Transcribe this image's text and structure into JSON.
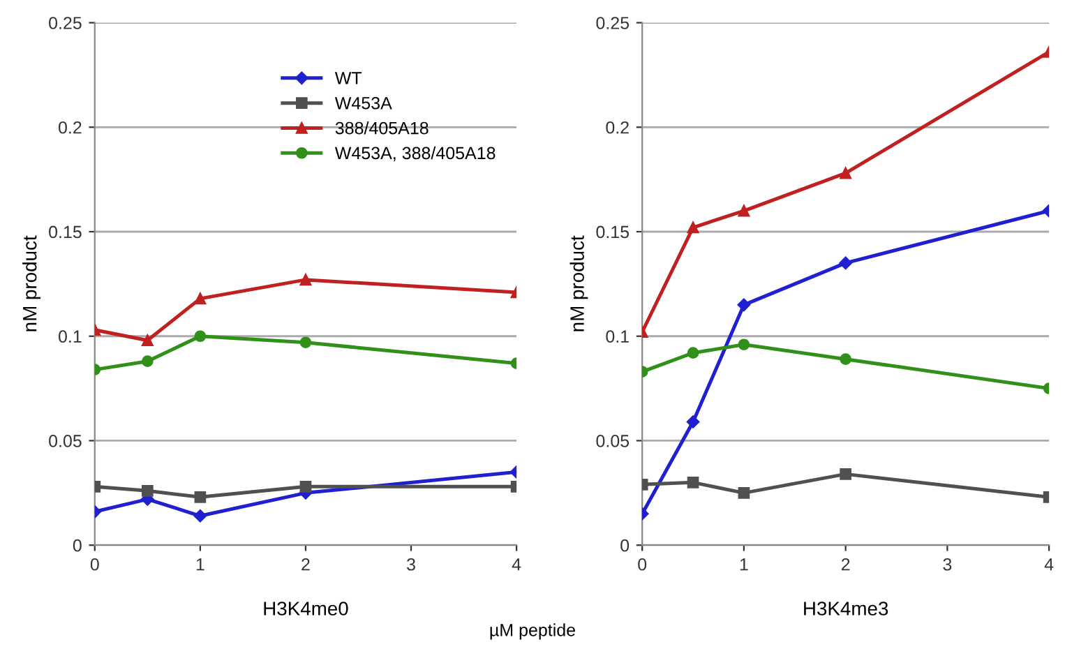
{
  "chart_data": [
    {
      "type": "line",
      "xlabel": "H3K4me0",
      "ylabel": "nM product",
      "x": [
        0,
        0.5,
        1,
        2,
        4
      ],
      "xlim": [
        0,
        4
      ],
      "xticks": [
        0,
        1,
        2,
        3,
        4
      ],
      "ylim": [
        0,
        0.25
      ],
      "yticks": [
        0,
        0.05,
        0.1,
        0.15,
        0.2,
        0.25
      ],
      "grid": "y",
      "legend": "top right",
      "annotations": [
        "µM peptide"
      ],
      "series": [
        {
          "name": "WT",
          "color": "#2020d0",
          "marker": "diamond",
          "values": [
            0.016,
            0.022,
            0.014,
            0.025,
            0.035
          ]
        },
        {
          "name": "W453A",
          "color": "#505050",
          "marker": "square",
          "values": [
            0.028,
            0.026,
            0.023,
            0.028,
            0.028
          ]
        },
        {
          "name": "388/405A18",
          "color": "#c02020",
          "marker": "triangle",
          "values": [
            0.103,
            0.098,
            0.118,
            0.127,
            0.121
          ]
        },
        {
          "name": "W453A, 388/405A18",
          "color": "#30901a",
          "marker": "circle",
          "values": [
            0.084,
            0.088,
            0.1,
            0.097,
            0.087
          ]
        }
      ]
    },
    {
      "type": "line",
      "xlabel": "H3K4me3",
      "ylabel": "nM product",
      "x": [
        0,
        0.5,
        1,
        2,
        4
      ],
      "xlim": [
        0,
        4
      ],
      "xticks": [
        0,
        1,
        2,
        3,
        4
      ],
      "ylim": [
        0,
        0.25
      ],
      "yticks": [
        0,
        0.05,
        0.1,
        0.15,
        0.2,
        0.25
      ],
      "grid": "y",
      "series": [
        {
          "color": "#2020d0",
          "marker": "diamond",
          "values": [
            0.015,
            0.059,
            0.115,
            0.135,
            0.16
          ]
        },
        {
          "color": "#505050",
          "marker": "square",
          "values": [
            0.029,
            0.03,
            0.025,
            0.034,
            0.023
          ]
        },
        {
          "color": "#c02020",
          "marker": "triangle",
          "values": [
            0.102,
            0.152,
            0.16,
            0.178,
            0.236
          ]
        },
        {
          "color": "#30901a",
          "marker": "circle",
          "values": [
            0.083,
            0.092,
            0.096,
            0.089,
            0.075
          ]
        }
      ]
    }
  ]
}
